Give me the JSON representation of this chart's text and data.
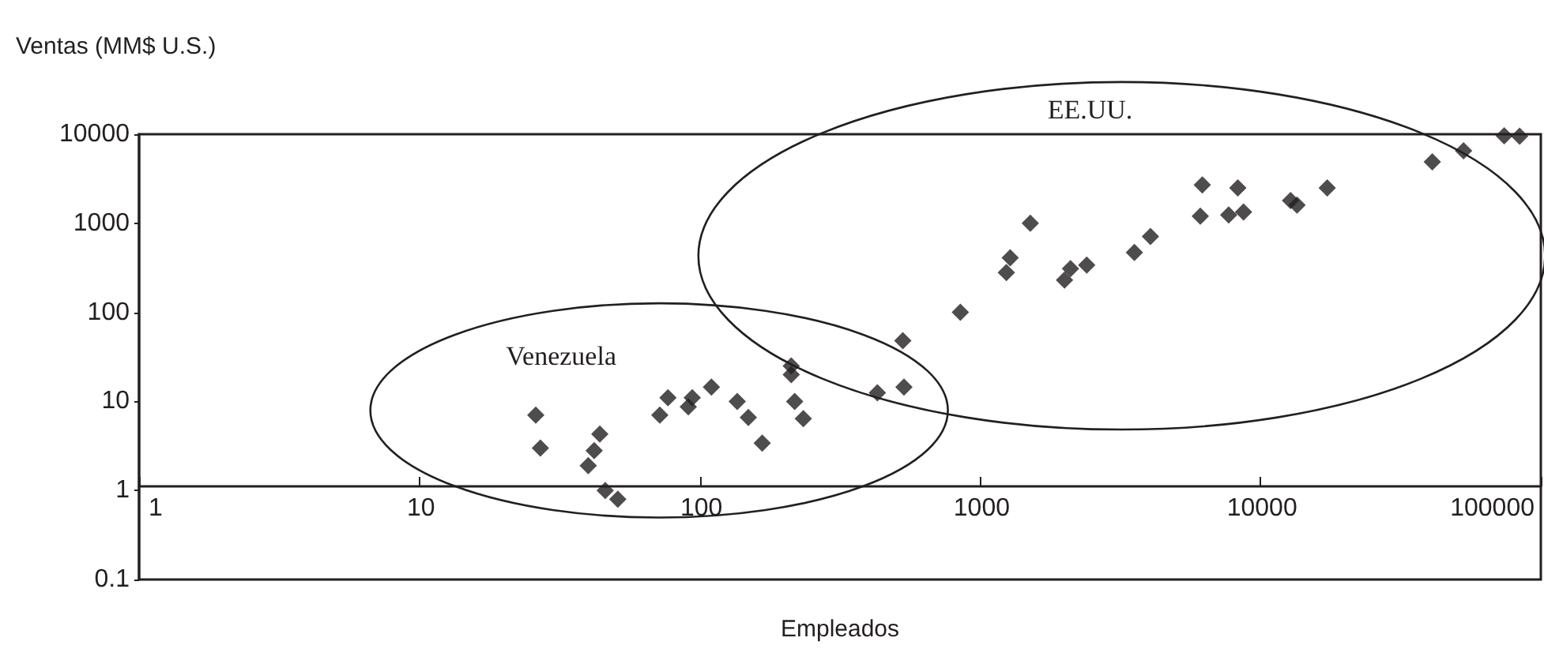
{
  "chart_data": {
    "type": "scatter",
    "ylabel": "Ventas (MM$ U.S.)",
    "xlabel": "Empleados",
    "annotations": [
      "Venezuela",
      "EE.UU."
    ],
    "log": "xy",
    "grid": false,
    "marker": "diamond",
    "xlim": [
      1,
      100000
    ],
    "xticks": [
      1,
      10,
      100,
      1000,
      10000,
      100000
    ],
    "ylim": [
      0.1,
      10000
    ],
    "yticks": [
      0.1,
      1,
      10,
      100,
      1000,
      10000
    ],
    "series": [
      {
        "color": "#231f20",
        "x": [
          26,
          27,
          44,
          42,
          40,
          46,
          51,
          72,
          77,
          94,
          91,
          110,
          136,
          149,
          167,
          212,
          212,
          218,
          234,
          430,
          535,
          530,
          850,
          1280,
          1240,
          1510,
          2000,
          2100,
          2400,
          3550,
          4050,
          6100,
          6200,
          7700,
          8700,
          8300,
          12800,
          13500,
          17300,
          41000,
          53000,
          74000,
          84000
        ],
        "values": [
          7,
          3,
          4.3,
          2.8,
          1.9,
          1,
          0.8,
          7,
          11,
          11,
          8.7,
          14.5,
          10,
          6.6,
          3.4,
          25,
          20,
          10,
          6.4,
          12.5,
          14.5,
          48,
          100,
          410,
          280,
          1000,
          230,
          310,
          340,
          470,
          710,
          1200,
          2700,
          1240,
          1340,
          2500,
          1800,
          1600,
          2500,
          4900,
          6500,
          9600,
          9500
        ]
      }
    ]
  }
}
